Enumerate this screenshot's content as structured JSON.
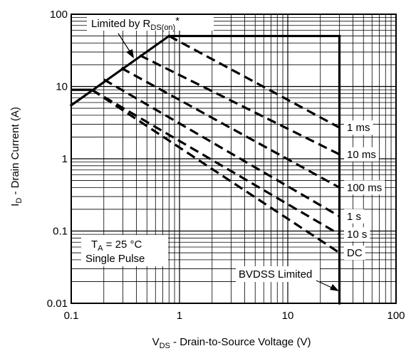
{
  "chart_data": {
    "type": "line",
    "xscale": "log",
    "yscale": "log",
    "xlim": [
      0.1,
      100
    ],
    "ylim": [
      0.01,
      100
    ],
    "grid": true,
    "xlabel": {
      "pre": "V",
      "sub": "DS",
      "post": " - Drain-to-Source Voltage (V)"
    },
    "ylabel": {
      "pre": "I",
      "sub": "D",
      "post": " - Drain Current (A)"
    },
    "x_ticks": [
      {
        "value": 0.1,
        "label": "0.1"
      },
      {
        "value": 1,
        "label": "1"
      },
      {
        "value": 10,
        "label": "10"
      },
      {
        "value": 100,
        "label": "100"
      }
    ],
    "y_ticks": [
      {
        "value": 0.01,
        "label": "0.01"
      },
      {
        "value": 0.1,
        "label": "0.1"
      },
      {
        "value": 1,
        "label": "1"
      },
      {
        "value": 10,
        "label": "10"
      },
      {
        "value": 100,
        "label": "100"
      }
    ],
    "boundary": {
      "rds_on_limit": {
        "x": [
          0.1,
          0.8
        ],
        "y": [
          5.5,
          50
        ]
      },
      "current_limit": {
        "x": [
          0.8,
          30
        ],
        "y": [
          50,
          50
        ]
      },
      "bvdss_limit": {
        "x": [
          30,
          30
        ],
        "y": [
          50,
          0.01
        ]
      }
    },
    "series": [
      {
        "name": "1 ms",
        "x": [
          0.8,
          30
        ],
        "y": [
          50,
          2.7
        ]
      },
      {
        "name": "10 ms",
        "x": [
          0.43,
          30
        ],
        "y": [
          27,
          1.15
        ]
      },
      {
        "name": "100 ms",
        "x": [
          0.29,
          30
        ],
        "y": [
          18,
          0.4
        ]
      },
      {
        "name": "1 s",
        "x": [
          0.2,
          30
        ],
        "y": [
          12.5,
          0.16
        ]
      },
      {
        "name": "10 s",
        "x": [
          0.155,
          30
        ],
        "y": [
          9,
          0.09
        ]
      },
      {
        "name": "DC",
        "x": [
          0.155,
          30
        ],
        "y": [
          9,
          0.05
        ]
      }
    ],
    "dc_step": {
      "x": [
        0.1,
        0.155
      ],
      "y": [
        9,
        9
      ]
    },
    "annotations": {
      "rds": {
        "pre": "Limited by R",
        "sub": "DS(on)",
        "post": "*"
      },
      "bvdss": "BVDSS Limited",
      "ta": {
        "pre": "T",
        "sub": "A",
        "post": " = 25 °C"
      },
      "pulse": "Single Pulse"
    }
  }
}
